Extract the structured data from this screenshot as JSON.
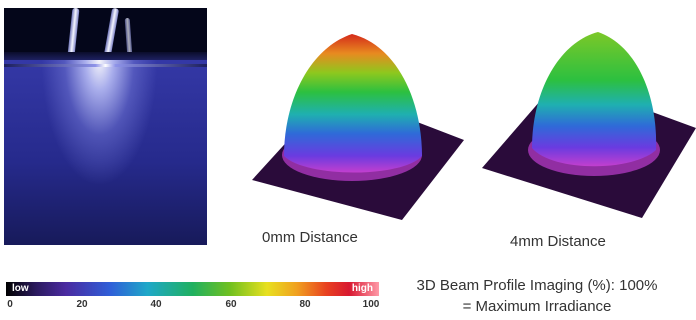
{
  "captions": {
    "left_plot": "0mm Distance",
    "right_plot": "4mm Distance"
  },
  "colorbar": {
    "low_label": "low",
    "high_label": "high",
    "ticks": [
      "0",
      "20",
      "40",
      "60",
      "80",
      "100"
    ]
  },
  "legend_text": {
    "line1": "3D Beam Profile Imaging (%): 100%",
    "line2": "= Maximum Irradiance"
  },
  "colors": {
    "background": "#ffffff",
    "plot_base": "#2a0b3a",
    "text": "#333333"
  },
  "icons": {
    "photo": "uv-lamp-beam-photo",
    "plot_left": "3d-beam-profile-0mm",
    "plot_right": "3d-beam-profile-4mm"
  }
}
